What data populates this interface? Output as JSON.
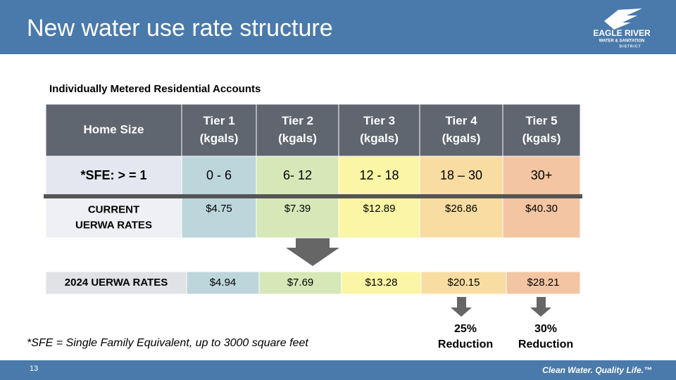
{
  "header": {
    "title": "New water use rate structure",
    "logo": [
      "EAGLE RIVER",
      "WATER & SANITATION",
      "DISTRICT"
    ]
  },
  "subtitle": "Individually Metered Residential Accounts",
  "table": {
    "header": [
      [
        "Home Size"
      ],
      [
        "Tier 1",
        "(kgals)"
      ],
      [
        "Tier 2",
        "(kgals)"
      ],
      [
        "Tier 3",
        "(kgals)"
      ],
      [
        "Tier 4",
        "(kgals)"
      ],
      [
        "Tier 5",
        "(kgals)"
      ]
    ],
    "rows": [
      [
        [
          "*SFE: > = 1"
        ],
        [
          "0 - 6"
        ],
        [
          "6- 12"
        ],
        [
          "12 - 18"
        ],
        [
          "18 – 30"
        ],
        [
          "30+"
        ]
      ],
      [
        [
          "CURRENT",
          "UERWA RATES"
        ],
        [
          "$4.75"
        ],
        [
          "$7.39"
        ],
        [
          "$12.89"
        ],
        [
          "$26.86"
        ],
        [
          "$40.30"
        ]
      ]
    ]
  },
  "new_rates": [
    "2024 UERWA RATES",
    "$4.94",
    "$7.69",
    "$13.28",
    "$20.15",
    "$28.21"
  ],
  "reductions": [
    [
      "25%",
      "Reduction"
    ],
    [
      "30%",
      "Reduction"
    ]
  ],
  "footnote": "*SFE = Single Family Equivalent, up to 3000 square feet",
  "footer": {
    "page": "13",
    "tagline": "Clean Water. Quality Life.™"
  }
}
